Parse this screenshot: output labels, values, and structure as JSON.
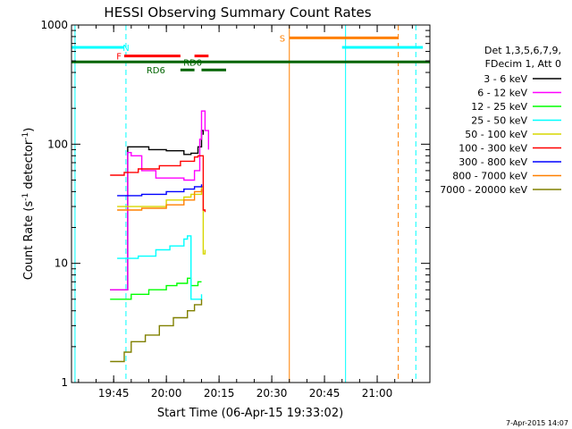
{
  "chart_data": {
    "type": "line",
    "title": "HESSI Observing Summary Count Rates",
    "xlabel": "Start Time (06-Apr-15 19:33:02)",
    "ylabel_main": "Count Rate (s",
    "ylabel_sup1": "-1",
    "ylabel_mid": " detector",
    "ylabel_sup2": "-1",
    "ylabel_end": ")",
    "y_scale": "log",
    "ylim": [
      1,
      1000
    ],
    "xlim": [
      "19:33",
      "21:15"
    ],
    "x_ticks": [
      {
        "t": "19:45",
        "label": "19:45"
      },
      {
        "t": "20:00",
        "label": "20:00"
      },
      {
        "t": "20:15",
        "label": "20:15"
      },
      {
        "t": "20:30",
        "label": "20:30"
      },
      {
        "t": "20:45",
        "label": "20:45"
      },
      {
        "t": "21:00",
        "label": "21:00"
      }
    ],
    "y_ticks": [
      {
        "v": 1,
        "label": "1"
      },
      {
        "v": 10,
        "label": "10"
      },
      {
        "v": 100,
        "label": "100"
      },
      {
        "v": 1000,
        "label": "1000"
      }
    ],
    "legend_header": [
      "Det 1,3,5,6,7,9,",
      "FDecim 1, Att 0"
    ],
    "legend_placement": "right",
    "timestamp": "7-Apr-2015 14:07",
    "series": [
      {
        "name": "3 - 6 keV",
        "color": "#000000",
        "points": [
          [
            "19:44:00",
            6
          ],
          [
            "19:48:00",
            6
          ],
          [
            "19:49:00",
            95
          ],
          [
            "19:55:00",
            90
          ],
          [
            "20:00:00",
            88
          ],
          [
            "20:05:00",
            82
          ],
          [
            "20:07:00",
            84
          ],
          [
            "20:09:00",
            95
          ],
          [
            "20:10:00",
            130
          ],
          [
            "20:10:30",
            120
          ]
        ]
      },
      {
        "name": "6 - 12 keV",
        "color": "#ff00ff",
        "points": [
          [
            "19:44:00",
            6
          ],
          [
            "19:48:00",
            6
          ],
          [
            "19:49:00",
            85
          ],
          [
            "19:50:00",
            80
          ],
          [
            "19:53:00",
            60
          ],
          [
            "19:57:00",
            52
          ],
          [
            "20:05:00",
            50
          ],
          [
            "20:08:00",
            60
          ],
          [
            "20:09:30",
            110
          ],
          [
            "20:10:00",
            190
          ],
          [
            "20:11:00",
            130
          ],
          [
            "20:12:00",
            90
          ]
        ]
      },
      {
        "name": "12 - 25 keV",
        "color": "#00ff00",
        "points": [
          [
            "19:44:00",
            5
          ],
          [
            "19:50:00",
            5.5
          ],
          [
            "19:55:00",
            6
          ],
          [
            "20:00:00",
            6.5
          ],
          [
            "20:03:00",
            6.8
          ],
          [
            "20:06:00",
            7.5
          ],
          [
            "20:07:00",
            6.5
          ],
          [
            "20:09:00",
            7
          ],
          [
            "20:10:00",
            7
          ]
        ]
      },
      {
        "name": "25 - 50 keV",
        "color": "#00ffff",
        "points": [
          [
            "19:46:00",
            11
          ],
          [
            "19:52:00",
            11.5
          ],
          [
            "19:57:00",
            13
          ],
          [
            "20:01:00",
            14
          ],
          [
            "20:05:00",
            16
          ],
          [
            "20:06:00",
            17
          ],
          [
            "20:07:00",
            5
          ],
          [
            "20:10:00",
            5.5
          ]
        ]
      },
      {
        "name": "50 - 100 keV",
        "color": "#d7d700",
        "points": [
          [
            "19:46:00",
            30
          ],
          [
            "19:53:00",
            30
          ],
          [
            "20:00:00",
            34
          ],
          [
            "20:05:00",
            36
          ],
          [
            "20:07:00",
            38
          ],
          [
            "20:10:00",
            44
          ],
          [
            "20:10:30",
            12
          ],
          [
            "20:11:00",
            13
          ]
        ]
      },
      {
        "name": "100 - 300 keV",
        "color": "#ff0000",
        "points": [
          [
            "19:44:00",
            55
          ],
          [
            "19:48:00",
            58
          ],
          [
            "19:52:00",
            62
          ],
          [
            "19:58:00",
            66
          ],
          [
            "20:04:00",
            72
          ],
          [
            "20:08:00",
            78
          ],
          [
            "20:09:00",
            80
          ],
          [
            "20:10:30",
            28
          ],
          [
            "20:11:00",
            27
          ]
        ]
      },
      {
        "name": "300 - 800 keV",
        "color": "#0000ff",
        "points": [
          [
            "19:46:00",
            37
          ],
          [
            "19:53:00",
            38
          ],
          [
            "20:00:00",
            40
          ],
          [
            "20:05:00",
            42
          ],
          [
            "20:08:00",
            44
          ],
          [
            "20:10:00",
            46
          ]
        ]
      },
      {
        "name": "800 - 7000 keV",
        "color": "#ff8000",
        "points": [
          [
            "19:46:00",
            28
          ],
          [
            "19:53:00",
            29
          ],
          [
            "20:00:00",
            31
          ],
          [
            "20:05:00",
            34
          ],
          [
            "20:08:00",
            40
          ],
          [
            "20:10:00",
            42
          ]
        ]
      },
      {
        "name": "7000 - 20000 keV",
        "color": "#808000",
        "points": [
          [
            "19:44:00",
            1.5
          ],
          [
            "19:48:00",
            1.8
          ],
          [
            "19:50:00",
            2.2
          ],
          [
            "19:54:00",
            2.5
          ],
          [
            "19:58:00",
            3
          ],
          [
            "20:02:00",
            3.5
          ],
          [
            "20:06:00",
            4
          ],
          [
            "20:08:00",
            4.5
          ],
          [
            "20:10:00",
            5
          ]
        ]
      }
    ],
    "segments": [
      {
        "label": "N",
        "color": "#00ffff",
        "level": 650,
        "from": "19:33",
        "to": "19:48",
        "label_at": "19:48:30"
      },
      {
        "label": "",
        "color": "#00ffff",
        "level": 650,
        "from": "20:50",
        "to": "21:13"
      },
      {
        "label": "F",
        "color": "#ff0000",
        "level": 550,
        "from": "19:48",
        "to": "20:04",
        "label_at": "19:46:30"
      },
      {
        "label": "",
        "color": "#ff0000",
        "level": 550,
        "from": "20:08",
        "to": "20:12"
      },
      {
        "label": "RD0",
        "color": "#006400",
        "level": 490,
        "from": "19:33",
        "to": "21:15",
        "label_at": "20:07:30"
      },
      {
        "label": "RD6",
        "color": "#006400",
        "level": 420,
        "from": "20:04",
        "to": "20:08",
        "label_at": "19:57:00"
      },
      {
        "label": "",
        "color": "#006400",
        "level": 420,
        "from": "20:10",
        "to": "20:17"
      },
      {
        "label": "S",
        "color": "#ff8000",
        "level": 780,
        "from": "20:35",
        "to": "21:06",
        "label_at": "20:33:00"
      }
    ],
    "vlines": [
      {
        "t": "19:34",
        "color": "#00ffff",
        "style": "solid"
      },
      {
        "t": "19:48:30",
        "color": "#00ffff",
        "style": "dashed"
      },
      {
        "t": "20:35",
        "color": "#ff8000",
        "style": "solid"
      },
      {
        "t": "20:51",
        "color": "#00ffff",
        "style": "solid"
      },
      {
        "t": "21:06",
        "color": "#ff8000",
        "style": "dashed"
      },
      {
        "t": "21:11",
        "color": "#00ffff",
        "style": "dashed"
      }
    ]
  }
}
